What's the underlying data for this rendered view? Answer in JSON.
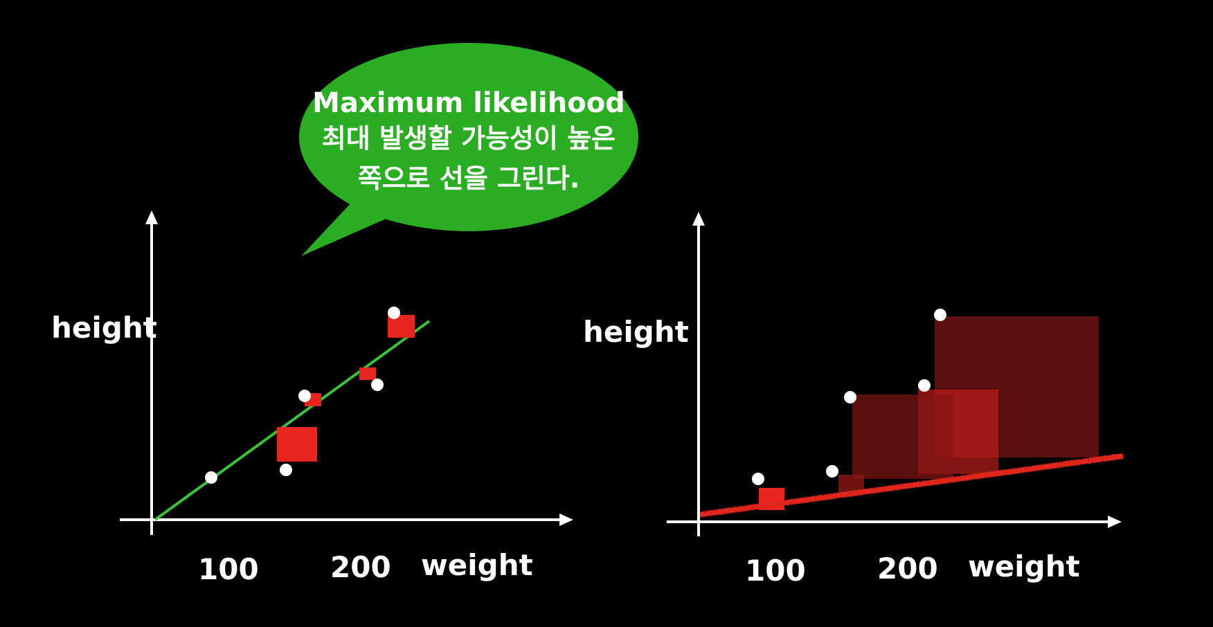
{
  "bubble": {
    "lines": [
      "Maximum likelihood",
      "최대 발생할 가능성이 높은",
      "쪽으로 선을 그린다."
    ],
    "color": "#2aad23"
  },
  "left_plot": {
    "y_label": "height",
    "x_label": "weight",
    "tick_100": "100",
    "tick_200": "200",
    "line_color": "#3ec03e"
  },
  "right_plot": {
    "y_label": "height",
    "x_label": "weight",
    "tick_100": "100",
    "tick_200": "200",
    "line_color": "#e0261e"
  },
  "colors": {
    "background": "#000000",
    "axis": "#ffffff",
    "point": "#ffffff",
    "residual": "#e8251e"
  }
}
